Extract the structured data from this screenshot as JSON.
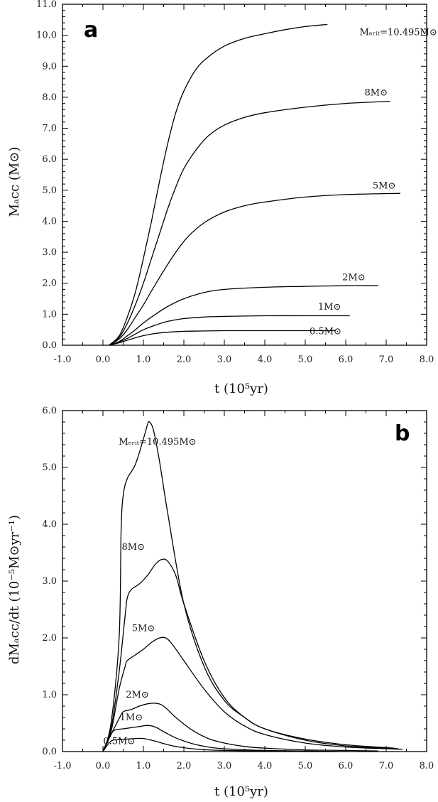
{
  "chart_data": [
    {
      "type": "line",
      "panel_label": "a",
      "xlabel": "t (10⁵yr)",
      "ylabel": "Mₐcc (M⊙)",
      "xlim": [
        -1.0,
        8.0
      ],
      "ylim": [
        0.0,
        11.0
      ],
      "x_ticks": [
        "-1.0",
        "0.0",
        "1.0",
        "2.0",
        "3.0",
        "4.0",
        "5.0",
        "6.0",
        "7.0",
        "8.0"
      ],
      "y_ticks": [
        "0.0",
        "1.0",
        "2.0",
        "3.0",
        "4.0",
        "5.0",
        "6.0",
        "7.0",
        "8.0",
        "9.0",
        "10.0",
        "11.0"
      ],
      "grid": false,
      "series": [
        {
          "name": "Mₑᵣᵢₜ=10.495M⊙",
          "label_at": [
            7.3,
            10.0
          ],
          "x": [
            0.15,
            0.4,
            0.6,
            0.8,
            1.0,
            1.2,
            1.4,
            1.6,
            1.8,
            2.0,
            2.3,
            2.6,
            3.0,
            3.5,
            4.0,
            4.5,
            5.0,
            5.55
          ],
          "y": [
            0.0,
            0.3,
            0.9,
            1.7,
            2.8,
            4.0,
            5.3,
            6.5,
            7.5,
            8.2,
            8.9,
            9.3,
            9.65,
            9.9,
            10.05,
            10.18,
            10.28,
            10.35
          ]
        },
        {
          "name": "8M⊙",
          "label_at": [
            6.75,
            8.05
          ],
          "x": [
            0.15,
            0.4,
            0.6,
            0.8,
            1.0,
            1.2,
            1.4,
            1.6,
            1.8,
            2.0,
            2.3,
            2.6,
            3.0,
            3.5,
            4.0,
            5.0,
            6.0,
            7.1
          ],
          "y": [
            0.0,
            0.25,
            0.7,
            1.3,
            2.0,
            2.8,
            3.6,
            4.4,
            5.1,
            5.7,
            6.3,
            6.75,
            7.1,
            7.35,
            7.5,
            7.68,
            7.8,
            7.87
          ]
        },
        {
          "name": "5M⊙",
          "label_at": [
            6.95,
            5.05
          ],
          "x": [
            0.15,
            0.4,
            0.6,
            0.8,
            1.0,
            1.2,
            1.5,
            1.8,
            2.1,
            2.5,
            3.0,
            3.5,
            4.0,
            5.0,
            6.0,
            7.35
          ],
          "y": [
            0.0,
            0.2,
            0.5,
            0.9,
            1.3,
            1.75,
            2.4,
            3.0,
            3.5,
            3.95,
            4.3,
            4.5,
            4.62,
            4.78,
            4.86,
            4.9
          ]
        },
        {
          "name": "2M⊙",
          "label_at": [
            6.2,
            2.1
          ],
          "x": [
            0.15,
            0.4,
            0.6,
            0.8,
            1.0,
            1.3,
            1.6,
            2.0,
            2.5,
            3.0,
            4.0,
            5.0,
            6.0,
            6.8
          ],
          "y": [
            0.0,
            0.12,
            0.3,
            0.5,
            0.72,
            1.0,
            1.25,
            1.5,
            1.7,
            1.8,
            1.87,
            1.9,
            1.92,
            1.92
          ]
        },
        {
          "name": "1M⊙",
          "label_at": [
            5.6,
            1.15
          ],
          "x": [
            0.15,
            0.4,
            0.6,
            0.8,
            1.0,
            1.3,
            1.6,
            2.0,
            2.5,
            3.0,
            4.0,
            5.0,
            6.1
          ],
          "y": [
            0.0,
            0.1,
            0.22,
            0.36,
            0.5,
            0.65,
            0.77,
            0.86,
            0.91,
            0.93,
            0.95,
            0.95,
            0.95
          ]
        },
        {
          "name": "0.5M⊙",
          "label_at": [
            5.5,
            0.35
          ],
          "x": [
            0.15,
            0.4,
            0.6,
            0.8,
            1.0,
            1.3,
            1.6,
            2.0,
            2.5,
            3.0,
            4.0,
            5.0,
            5.75
          ],
          "y": [
            0.0,
            0.08,
            0.16,
            0.24,
            0.31,
            0.38,
            0.42,
            0.45,
            0.46,
            0.47,
            0.47,
            0.47,
            0.47
          ]
        }
      ]
    },
    {
      "type": "line",
      "panel_label": "b",
      "xlabel": "t (10⁵yr)",
      "ylabel": "dMₐcc/dt (10⁻⁵M⊙yr⁻¹)",
      "xlim": [
        -1.0,
        8.0
      ],
      "ylim": [
        0.0,
        6.0
      ],
      "x_ticks": [
        "-1.0",
        "0.0",
        "1.0",
        "2.0",
        "3.0",
        "4.0",
        "5.0",
        "6.0",
        "7.0",
        "8.0"
      ],
      "y_ticks": [
        "0.0",
        "1.0",
        "2.0",
        "3.0",
        "4.0",
        "5.0",
        "6.0"
      ],
      "grid": false,
      "series": [
        {
          "name": "Mₑᵣᵢₜ=10.495M⊙",
          "label_at": [
            1.35,
            5.4
          ],
          "x": [
            0.0,
            0.2,
            0.4,
            0.45,
            0.5,
            0.6,
            0.8,
            1.0,
            1.1,
            1.15,
            1.25,
            1.4,
            1.6,
            2.0,
            2.5,
            3.0,
            3.5,
            4.0,
            5.0,
            6.0,
            7.0,
            7.2
          ],
          "y": [
            0.0,
            0.5,
            2.0,
            3.9,
            4.5,
            4.8,
            5.05,
            5.5,
            5.75,
            5.8,
            5.65,
            5.1,
            4.2,
            2.6,
            1.5,
            0.9,
            0.6,
            0.4,
            0.22,
            0.12,
            0.07,
            0.06
          ]
        },
        {
          "name": "8M⊙",
          "label_at": [
            0.75,
            3.55
          ],
          "x": [
            0.0,
            0.2,
            0.4,
            0.55,
            0.6,
            0.7,
            0.9,
            1.1,
            1.3,
            1.45,
            1.6,
            1.8,
            2.0,
            2.5,
            3.0,
            3.5,
            4.0,
            5.0,
            6.0,
            7.0,
            7.3
          ],
          "y": [
            0.0,
            0.4,
            1.4,
            2.4,
            2.7,
            2.85,
            2.95,
            3.1,
            3.3,
            3.38,
            3.35,
            3.1,
            2.6,
            1.6,
            0.95,
            0.6,
            0.4,
            0.2,
            0.1,
            0.06,
            0.05
          ]
        },
        {
          "name": "5M⊙",
          "label_at": [
            1.0,
            2.12
          ],
          "x": [
            0.0,
            0.2,
            0.4,
            0.55,
            0.6,
            0.8,
            1.0,
            1.2,
            1.4,
            1.55,
            1.7,
            2.0,
            2.5,
            3.0,
            3.5,
            4.0,
            5.0,
            6.0,
            7.0,
            7.4
          ],
          "y": [
            0.0,
            0.35,
            1.1,
            1.5,
            1.6,
            1.7,
            1.8,
            1.92,
            2.0,
            2.0,
            1.9,
            1.6,
            1.1,
            0.7,
            0.45,
            0.3,
            0.15,
            0.08,
            0.05,
            0.04
          ]
        },
        {
          "name": "2M⊙",
          "label_at": [
            0.85,
            0.95
          ],
          "x": [
            0.0,
            0.2,
            0.4,
            0.5,
            0.7,
            0.9,
            1.1,
            1.3,
            1.5,
            1.8,
            2.2,
            2.6,
            3.0,
            3.5,
            4.0,
            5.0,
            6.0,
            6.8
          ],
          "y": [
            0.0,
            0.3,
            0.58,
            0.7,
            0.74,
            0.8,
            0.84,
            0.85,
            0.8,
            0.6,
            0.38,
            0.23,
            0.15,
            0.09,
            0.06,
            0.03,
            0.02,
            0.01
          ]
        },
        {
          "name": "1M⊙",
          "label_at": [
            0.7,
            0.55
          ],
          "x": [
            0.0,
            0.2,
            0.3,
            0.5,
            0.7,
            0.9,
            1.1,
            1.3,
            1.5,
            1.8,
            2.2,
            2.6,
            3.0,
            4.0,
            5.0,
            6.1
          ],
          "y": [
            0.0,
            0.3,
            0.38,
            0.4,
            0.42,
            0.44,
            0.46,
            0.43,
            0.35,
            0.24,
            0.14,
            0.08,
            0.05,
            0.02,
            0.01,
            0.0
          ]
        },
        {
          "name": "0.5M⊙",
          "label_at": [
            0.4,
            0.13
          ],
          "x": [
            0.0,
            0.15,
            0.25,
            0.4,
            0.6,
            0.8,
            1.0,
            1.2,
            1.5,
            1.8,
            2.2,
            2.6,
            3.0,
            4.0,
            5.0,
            5.75
          ],
          "y": [
            0.0,
            0.15,
            0.2,
            0.21,
            0.22,
            0.23,
            0.23,
            0.2,
            0.14,
            0.09,
            0.05,
            0.03,
            0.02,
            0.01,
            0.0,
            0.0
          ]
        }
      ]
    }
  ]
}
